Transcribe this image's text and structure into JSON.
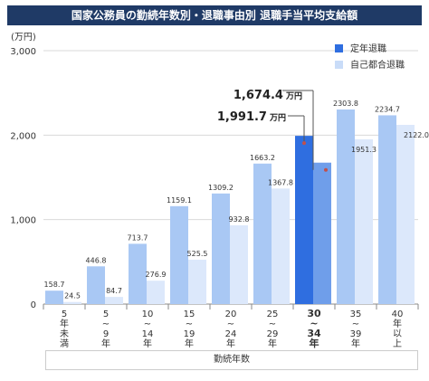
{
  "title": "国家公務員の勤続年数別・退職事由別 退職手当平均支給額",
  "chart_data": {
    "type": "bar",
    "ylabel": "(万円)",
    "xlabel": "勤続年数",
    "ylim": [
      0,
      3000
    ],
    "yticks": [
      "0",
      "1,000",
      "2,000",
      "3,000"
    ],
    "categories": [
      [
        "5",
        "年",
        "未",
        "満"
      ],
      [
        "5",
        "~",
        "9",
        "年"
      ],
      [
        "10",
        "~",
        "14",
        "年"
      ],
      [
        "15",
        "~",
        "19",
        "年"
      ],
      [
        "20",
        "~",
        "24",
        "年"
      ],
      [
        "25",
        "~",
        "29",
        "年"
      ],
      [
        "30",
        "~",
        "34",
        "年"
      ],
      [
        "35",
        "~",
        "39",
        "年"
      ],
      [
        "40",
        "年",
        "以",
        "上"
      ]
    ],
    "highlight_index": 6,
    "series": [
      {
        "name": "定年退職",
        "values": [
          158.7,
          446.8,
          713.7,
          1159.1,
          1309.2,
          1663.2,
          1991.7,
          2303.8,
          2234.7
        ],
        "labels": [
          "158.7",
          "446.8",
          "713.7",
          "1159.1",
          "1309.2",
          "1663.2",
          "",
          "2303.8",
          "2234.7"
        ]
      },
      {
        "name": "自己都合退職",
        "values": [
          24.5,
          84.7,
          276.9,
          525.5,
          932.8,
          1367.8,
          1674.4,
          1951.3,
          2122.0
        ],
        "labels": [
          "24.5",
          "84.7",
          "276.9",
          "525.5",
          "932.8",
          "1367.8",
          "",
          "1951.3",
          "2122.0"
        ]
      }
    ],
    "callouts": [
      {
        "series": 1,
        "index": 6,
        "number": "1,674.4",
        "unit": "万円"
      },
      {
        "series": 0,
        "index": 6,
        "number": "1,991.7",
        "unit": "万円"
      }
    ],
    "colors": {
      "series0": "#a9c8f4",
      "series1": "#dce8fb",
      "highlight0": "#2f6ee0",
      "highlight1": "#6f9eea",
      "legend0": "#2f6ee0",
      "legend1": "#c9dcf8",
      "dot": "#c0504d",
      "grid": "#d9d9d9",
      "header": "#1f3a66"
    }
  }
}
